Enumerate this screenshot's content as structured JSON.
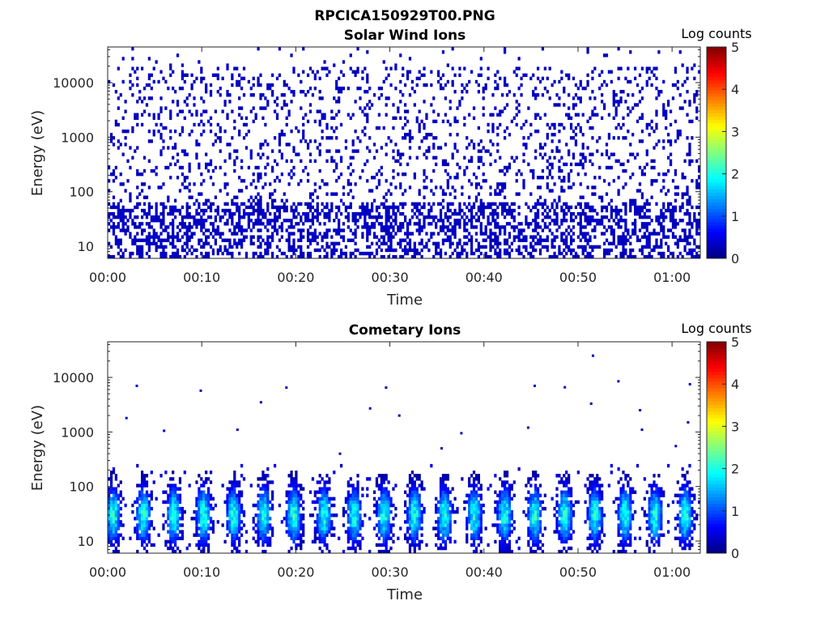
{
  "figure": {
    "title": "RPCICA150929T00.PNG"
  },
  "chart_data": [
    {
      "type": "heatmap",
      "title": "Solar Wind Ions",
      "xlabel": "Time",
      "ylabel": "Energy (eV)",
      "x_ticks": [
        "00:00",
        "00:10",
        "00:20",
        "00:30",
        "00:40",
        "00:50",
        "01:00"
      ],
      "x_range_minutes": [
        0,
        63
      ],
      "y_scale": "log",
      "y_ticks": [
        10,
        100,
        1000,
        10000
      ],
      "ylim": [
        6,
        45000
      ],
      "colorbar": {
        "label": "Log counts",
        "range": [
          0,
          5
        ],
        "ticks": [
          0,
          1,
          2,
          3,
          4,
          5
        ]
      },
      "grid": false,
      "pattern": "sparse low-count noise at all energies; denser vertical streaks below ~50 eV",
      "max_level": 0.4,
      "background_density": 0.16,
      "low_energy_streak_density": 0.45
    },
    {
      "type": "heatmap",
      "title": "Cometary Ions",
      "xlabel": "Time",
      "ylabel": "Energy (eV)",
      "x_ticks": [
        "00:00",
        "00:10",
        "00:20",
        "00:30",
        "00:40",
        "00:50",
        "01:00"
      ],
      "x_range_minutes": [
        0,
        63
      ],
      "y_scale": "log",
      "y_ticks": [
        10,
        100,
        1000,
        10000
      ],
      "ylim": [
        6,
        45000
      ],
      "colorbar": {
        "label": "Log counts",
        "range": [
          0,
          5
        ],
        "ticks": [
          0,
          1,
          2,
          3,
          4,
          5
        ]
      },
      "grid": false,
      "pattern": "periodic bursts about every 3.2 min below ~300 eV, peak ~2 log counts near 10–50 eV",
      "burst_period_minutes": 3.2,
      "burst_start_minutes": 0.6,
      "burst_peak_energy_eV": 30,
      "burst_peak_level": 2.1,
      "sparse_points": [
        [
          3.1,
          7000
        ],
        [
          9.9,
          5700
        ],
        [
          13.8,
          1100
        ],
        [
          16.3,
          3500
        ],
        [
          19.0,
          6500
        ],
        [
          6.0,
          1050
        ],
        [
          2.0,
          1800
        ],
        [
          27.9,
          2700
        ],
        [
          29.6,
          6500
        ],
        [
          31.0,
          2000
        ],
        [
          35.5,
          500
        ],
        [
          37.6,
          950
        ],
        [
          44.7,
          1200
        ],
        [
          45.4,
          7000
        ],
        [
          48.6,
          6600
        ],
        [
          51.4,
          3300
        ],
        [
          51.6,
          25000
        ],
        [
          54.3,
          8500
        ],
        [
          56.6,
          2500
        ],
        [
          56.8,
          1100
        ],
        [
          60.4,
          550
        ],
        [
          61.7,
          1500
        ],
        [
          61.9,
          7500
        ],
        [
          24.7,
          400
        ]
      ]
    }
  ]
}
